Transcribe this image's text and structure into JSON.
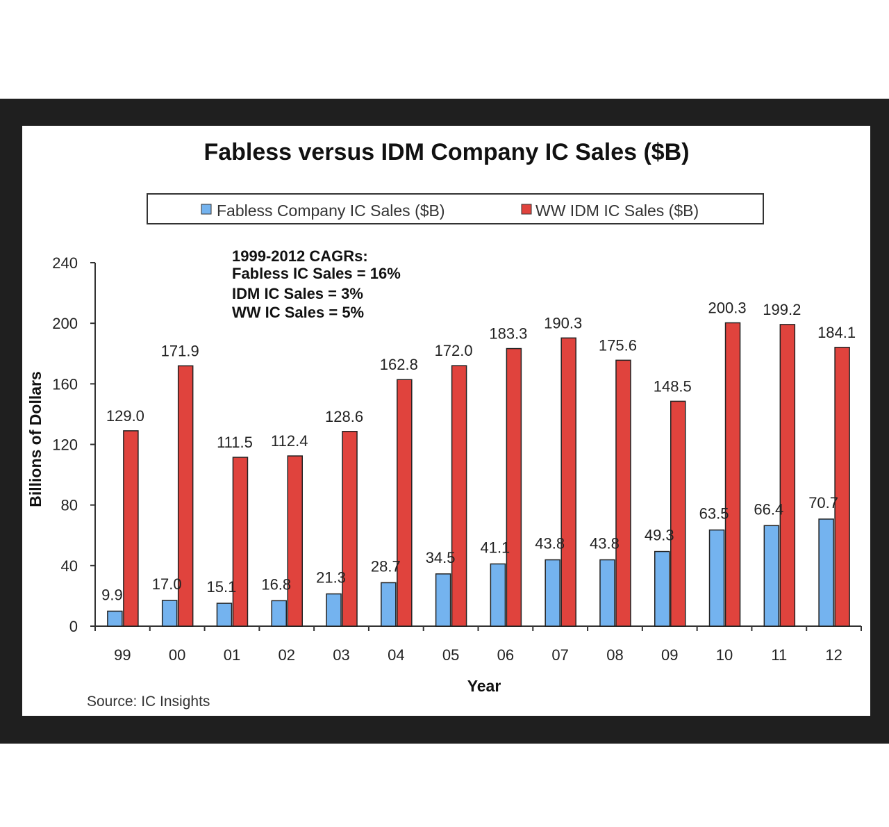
{
  "chart_data": {
    "type": "bar",
    "title": "Fabless versus IDM Company IC Sales ($B)",
    "xlabel": "Year",
    "ylabel": "Billions of Dollars",
    "ylim": [
      0,
      240
    ],
    "yticks": [
      0,
      40,
      80,
      120,
      160,
      200,
      240
    ],
    "categories": [
      "99",
      "00",
      "01",
      "02",
      "03",
      "04",
      "05",
      "06",
      "07",
      "08",
      "09",
      "10",
      "11",
      "12"
    ],
    "series": [
      {
        "name": "Fabless Company IC Sales ($B)",
        "color": "#74b3ef",
        "values": [
          9.9,
          17.0,
          15.1,
          16.8,
          21.3,
          28.7,
          34.5,
          41.1,
          43.8,
          43.8,
          49.3,
          63.5,
          66.4,
          70.7
        ]
      },
      {
        "name": "WW IDM IC Sales ($B)",
        "color": "#e0433d",
        "values": [
          129.0,
          171.9,
          111.5,
          112.4,
          128.6,
          162.8,
          172.0,
          183.3,
          190.3,
          175.6,
          148.5,
          200.3,
          199.2,
          184.1
        ]
      }
    ],
    "annotations": [
      "1999-2012 CAGRs:",
      "Fabless IC Sales = 16%",
      "IDM IC Sales = 3%",
      "WW IC Sales = 5%"
    ],
    "source": "Source: IC Insights",
    "legend_position": "top",
    "grid": false
  }
}
